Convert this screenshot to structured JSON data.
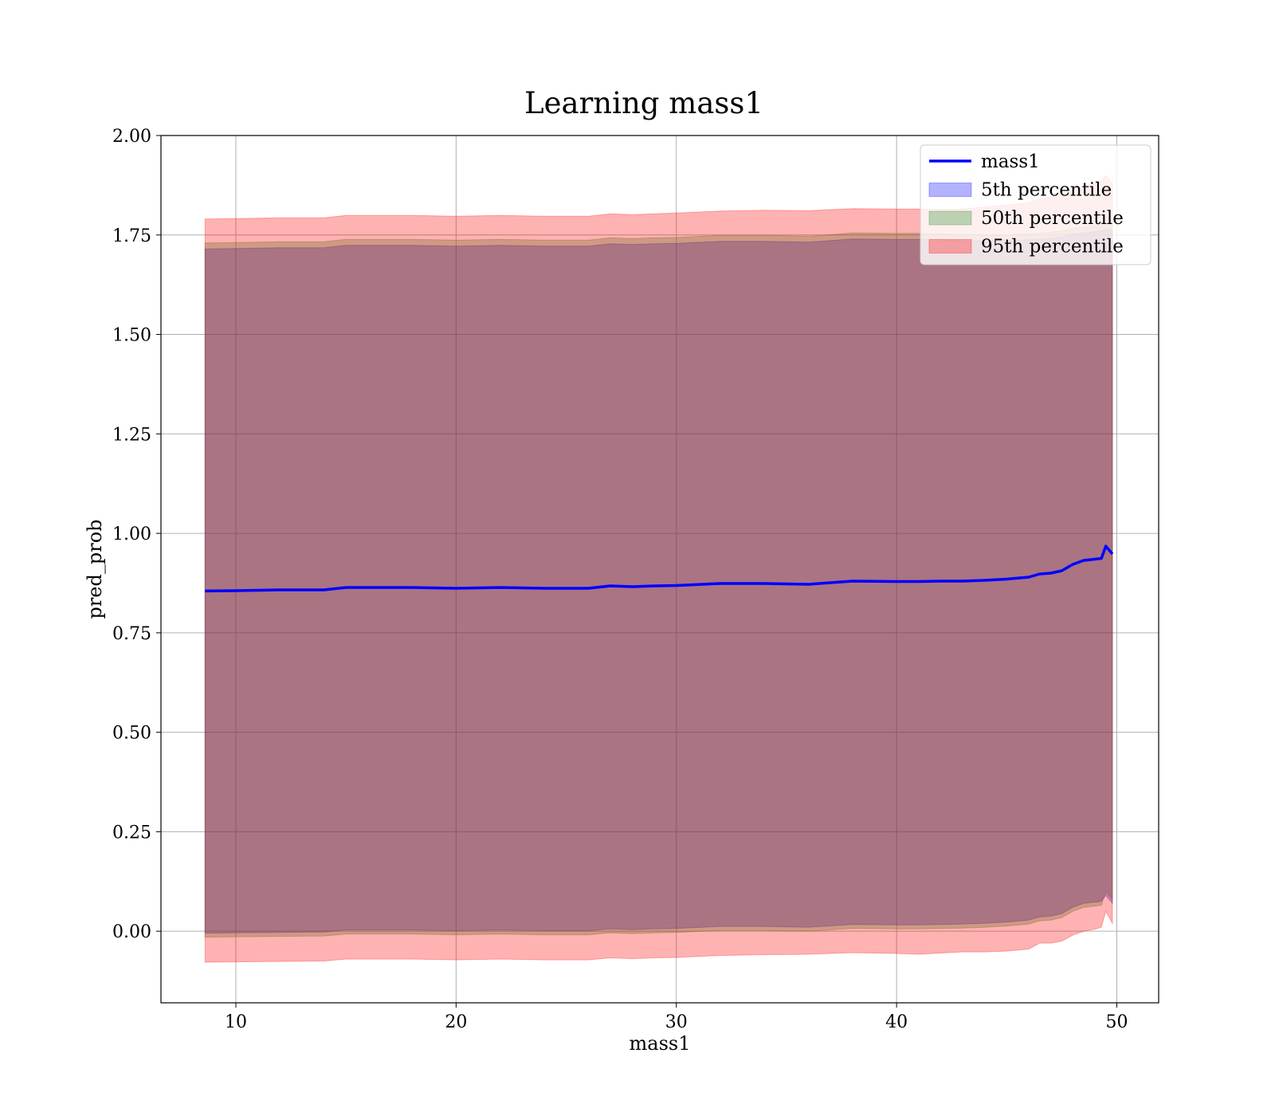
{
  "chart_data": {
    "type": "area",
    "title": "Learning mass1",
    "xlabel": "mass1",
    "ylabel": "pred_prob",
    "xlim": [
      6.6,
      51.9
    ],
    "ylim": [
      -0.18,
      2.0
    ],
    "xticks": [
      10,
      20,
      30,
      40,
      50
    ],
    "xtick_labels": [
      "10",
      "20",
      "30",
      "40",
      "50"
    ],
    "yticks": [
      0.0,
      0.25,
      0.5,
      0.75,
      1.0,
      1.25,
      1.5,
      1.75,
      2.0
    ],
    "ytick_labels": [
      "0.00",
      "0.25",
      "0.50",
      "0.75",
      "1.00",
      "1.25",
      "1.50",
      "1.75",
      "2.00"
    ],
    "grid": true,
    "legend_position": "top-right",
    "x": [
      8.6,
      10,
      12,
      14,
      15,
      16,
      18,
      20,
      22,
      24,
      26,
      27,
      28,
      29,
      30,
      32,
      34,
      36,
      38,
      40,
      41,
      42,
      43,
      44,
      45,
      46,
      46.5,
      47,
      47.5,
      48,
      48.5,
      49,
      49.3,
      49.5,
      49.8
    ],
    "series": [
      {
        "name": "mass1",
        "kind": "line",
        "color": "#0000ff",
        "values": [
          0.855,
          0.856,
          0.858,
          0.858,
          0.864,
          0.864,
          0.864,
          0.862,
          0.864,
          0.862,
          0.862,
          0.868,
          0.866,
          0.868,
          0.869,
          0.874,
          0.874,
          0.872,
          0.88,
          0.879,
          0.879,
          0.88,
          0.88,
          0.882,
          0.885,
          0.89,
          0.898,
          0.9,
          0.906,
          0.922,
          0.932,
          0.935,
          0.937,
          0.968,
          0.948
        ]
      },
      {
        "name": "5th percentile",
        "kind": "band",
        "color": "#0000ff",
        "alpha": 0.3,
        "lower": [
          -0.005,
          -0.004,
          -0.003,
          -0.002,
          0.003,
          0.003,
          0.003,
          0.001,
          0.003,
          0.001,
          0.001,
          0.006,
          0.004,
          0.006,
          0.007,
          0.012,
          0.012,
          0.01,
          0.017,
          0.016,
          0.016,
          0.017,
          0.018,
          0.02,
          0.023,
          0.028,
          0.036,
          0.038,
          0.044,
          0.06,
          0.07,
          0.073,
          0.075,
          0.09,
          0.07
        ],
        "upper": [
          1.715,
          1.716,
          1.718,
          1.718,
          1.724,
          1.724,
          1.724,
          1.722,
          1.724,
          1.722,
          1.722,
          1.728,
          1.726,
          1.728,
          1.729,
          1.734,
          1.734,
          1.732,
          1.74,
          1.739,
          1.739,
          1.738,
          1.736,
          1.735,
          1.735,
          1.738,
          1.74,
          1.742,
          1.745,
          1.752,
          1.755,
          1.758,
          1.76,
          1.765,
          1.76
        ]
      },
      {
        "name": "50th percentile",
        "kind": "band",
        "color": "#228b22",
        "alpha": 0.3,
        "lower": [
          -0.015,
          -0.014,
          -0.013,
          -0.012,
          -0.007,
          -0.007,
          -0.007,
          -0.009,
          -0.007,
          -0.009,
          -0.009,
          -0.004,
          -0.006,
          -0.004,
          -0.003,
          0.002,
          0.002,
          0.0,
          0.007,
          0.006,
          0.006,
          0.007,
          0.008,
          0.01,
          0.013,
          0.018,
          0.026,
          0.028,
          0.034,
          0.05,
          0.06,
          0.063,
          0.065,
          0.1,
          0.08
        ],
        "upper": [
          1.73,
          1.731,
          1.733,
          1.733,
          1.739,
          1.739,
          1.739,
          1.737,
          1.739,
          1.737,
          1.737,
          1.743,
          1.741,
          1.743,
          1.744,
          1.749,
          1.749,
          1.747,
          1.755,
          1.754,
          1.754,
          1.753,
          1.751,
          1.75,
          1.75,
          1.753,
          1.755,
          1.757,
          1.76,
          1.767,
          1.77,
          1.773,
          1.775,
          1.78,
          1.775
        ]
      },
      {
        "name": "95th percentile",
        "kind": "band",
        "color": "#ff0000",
        "alpha": 0.3,
        "lower": [
          -0.078,
          -0.077,
          -0.076,
          -0.075,
          -0.07,
          -0.07,
          -0.07,
          -0.072,
          -0.07,
          -0.072,
          -0.072,
          -0.067,
          -0.069,
          -0.067,
          -0.066,
          -0.061,
          -0.059,
          -0.058,
          -0.054,
          -0.056,
          -0.058,
          -0.055,
          -0.052,
          -0.052,
          -0.05,
          -0.045,
          -0.03,
          -0.03,
          -0.025,
          -0.01,
          0.0,
          0.005,
          0.01,
          0.05,
          0.02
        ],
        "upper": [
          1.79,
          1.791,
          1.793,
          1.793,
          1.799,
          1.799,
          1.799,
          1.797,
          1.799,
          1.797,
          1.797,
          1.803,
          1.801,
          1.803,
          1.805,
          1.81,
          1.812,
          1.811,
          1.816,
          1.815,
          1.815,
          1.814,
          1.815,
          1.82,
          1.825,
          1.832,
          1.84,
          1.845,
          1.852,
          1.86,
          1.87,
          1.878,
          1.885,
          1.9,
          1.88
        ]
      }
    ],
    "legend": [
      {
        "label": "mass1",
        "kind": "line",
        "color": "#0000ff"
      },
      {
        "label": "5th percentile",
        "kind": "patch",
        "color": "#0000ff"
      },
      {
        "label": "50th percentile",
        "kind": "patch",
        "color": "#228b22"
      },
      {
        "label": "95th percentile",
        "kind": "patch",
        "color": "#ff0000"
      }
    ]
  }
}
